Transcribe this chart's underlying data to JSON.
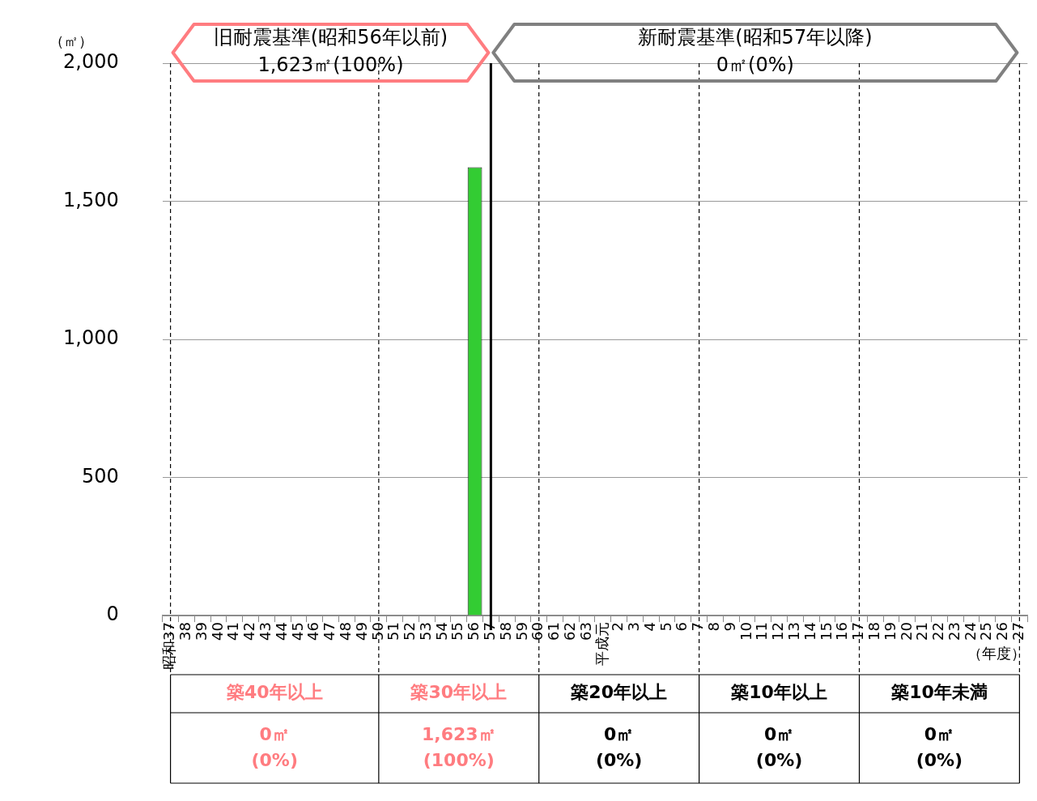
{
  "chart_data": {
    "type": "bar",
    "ylabel": "（㎡）",
    "categories": [
      "昭和37",
      "38",
      "39",
      "40",
      "41",
      "42",
      "43",
      "44",
      "45",
      "46",
      "47",
      "48",
      "49",
      "50",
      "51",
      "52",
      "53",
      "54",
      "55",
      "56",
      "57",
      "58",
      "59",
      "60",
      "61",
      "62",
      "63",
      "平成元",
      "2",
      "3",
      "4",
      "5",
      "6",
      "7",
      "8",
      "9",
      "10",
      "11",
      "12",
      "13",
      "14",
      "15",
      "16",
      "17",
      "18",
      "19",
      "20",
      "21",
      "22",
      "23",
      "24",
      "25",
      "26",
      "27"
    ],
    "series": [
      {
        "color": "#33cc33",
        "values": [
          0,
          0,
          0,
          0,
          0,
          0,
          0,
          0,
          0,
          0,
          0,
          0,
          0,
          0,
          0,
          0,
          0,
          0,
          0,
          1623,
          0,
          0,
          0,
          0,
          0,
          0,
          0,
          0,
          0,
          0,
          0,
          0,
          0,
          0,
          0,
          0,
          0,
          0,
          0,
          0,
          0,
          0,
          0,
          0,
          0,
          0,
          0,
          0,
          0,
          0,
          0,
          0,
          0,
          0
        ]
      }
    ],
    "ylim": [
      0,
      2000
    ],
    "yticks": [
      0,
      500,
      {
        "value": 1000,
        "label": "1,000"
      },
      {
        "value": 1500,
        "label": "1,500"
      },
      {
        "value": 2000,
        "label": "2,000"
      }
    ],
    "grid": "y",
    "legend": false,
    "ref_lines": [
      {
        "axis": "x",
        "value": "昭和37",
        "line_style": "dashed",
        "color": "#000000"
      },
      {
        "axis": "x",
        "value": "50",
        "line_style": "dashed",
        "color": "#000000"
      },
      {
        "axis": "x",
        "value": "60",
        "line_style": "dashed",
        "color": "#000000"
      },
      {
        "axis": "x",
        "value": "7",
        "line_style": "dashed",
        "color": "#000000"
      },
      {
        "axis": "x",
        "value": "17",
        "line_style": "dashed",
        "color": "#000000"
      },
      {
        "axis": "x",
        "value": "27",
        "line_style": "dashed",
        "color": "#000000"
      },
      {
        "axis": "x",
        "value": "57",
        "line_style": "solid",
        "color": "#000000"
      }
    ],
    "annotations": [
      "旧耐震基準(昭和56年以前)\n1,623㎡(100%)",
      "新耐震基準(昭和57年以降)\n0㎡(0%)",
      "築40年以上",
      "築30年以上",
      "築20年以上",
      "築10年以上",
      "築10年未満",
      "0㎡\n(0%)",
      "1,623㎡\n(100%)",
      "0㎡\n(0%)",
      "0㎡\n(0%)",
      "0㎡\n(0%)",
      "（年度）"
    ]
  }
}
